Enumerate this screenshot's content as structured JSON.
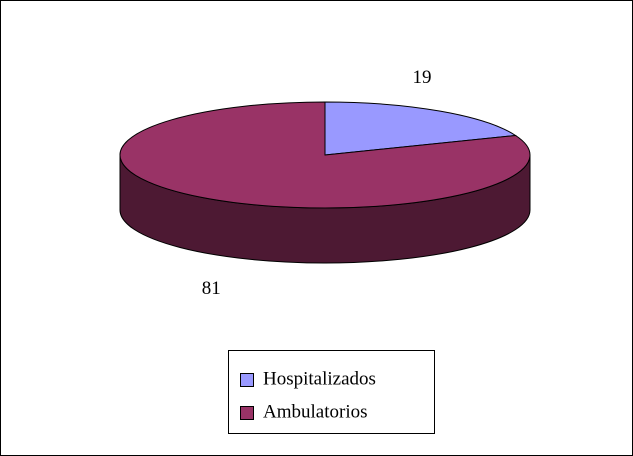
{
  "chart_data": {
    "type": "pie3d",
    "categories": [
      "Hospitalizados",
      "Ambulatorios"
    ],
    "values": [
      19,
      81
    ],
    "colors": [
      "#9999ff",
      "#993366"
    ],
    "side_colors": [
      "#4d4d80",
      "#4d1933"
    ],
    "legend": "bottom"
  }
}
